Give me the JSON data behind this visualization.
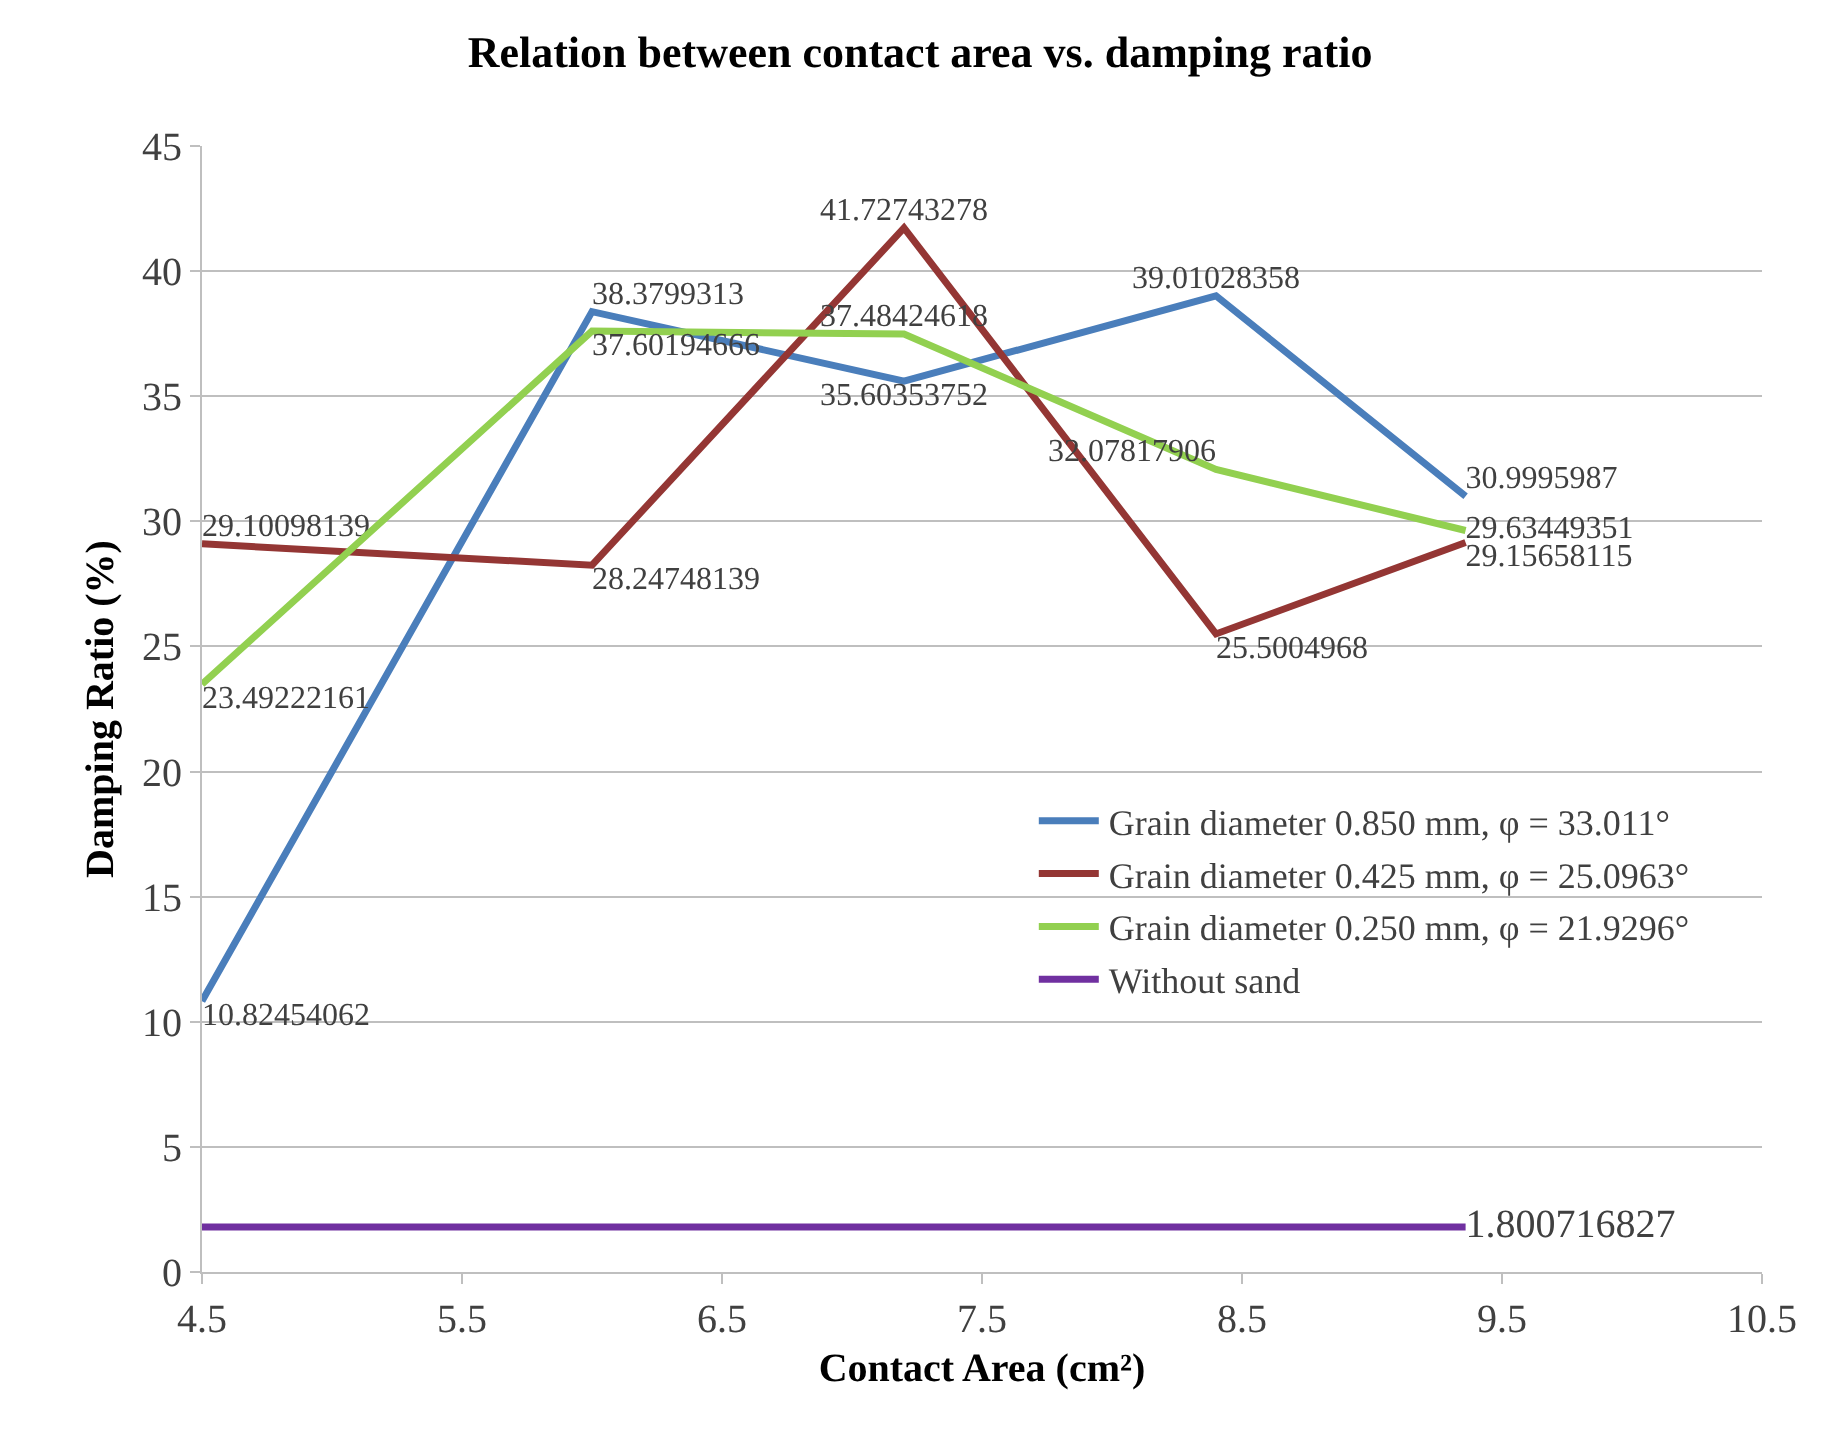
{
  "chart_data": {
    "type": "line",
    "title": "Relation between contact area vs. damping ratio",
    "xlabel": "Contact Area (cm²)",
    "ylabel": "Damping Ratio (%)",
    "x": [
      4.5,
      6.0,
      7.2,
      8.4,
      9.36
    ],
    "xlim": [
      4.5,
      10.5
    ],
    "xticks": [
      4.5,
      5.5,
      6.5,
      7.5,
      8.5,
      9.5,
      10.5
    ],
    "ylim": [
      0,
      45
    ],
    "yticks": [
      0,
      5,
      10,
      15,
      20,
      25,
      30,
      35,
      40,
      45
    ],
    "grid": "y",
    "legend": "right",
    "marker": "none",
    "line_style": "solid",
    "series": [
      {
        "name": "Grain diameter 0.850 mm, φ = 33.011°",
        "color": "#4a7ebb",
        "values": [
          10.82454062,
          38.3799313,
          35.60353752,
          39.01028358,
          30.9995987
        ],
        "value_labels": [
          "10.82454062",
          "38.3799313",
          "35.60353752",
          "39.01028358",
          "30.9995987"
        ]
      },
      {
        "name": "Grain diameter 0.425 mm, φ = 25.0963°",
        "color": "#943634",
        "values": [
          29.10098139,
          28.24748139,
          41.72743278,
          25.5004968,
          29.15658115
        ],
        "value_labels": [
          "29.10098139",
          "28.24748139",
          "41.72743278",
          "25.5004968",
          "29.15658115"
        ]
      },
      {
        "name": "Grain diameter 0.250 mm, φ = 21.9296°",
        "color": "#92d050",
        "values": [
          23.49222161,
          37.60194666,
          37.48424618,
          32.07817906,
          29.63449351
        ],
        "value_labels": [
          "23.49222161",
          "37.60194666",
          "37.48424618",
          "32.07817906",
          "29.63449351"
        ]
      },
      {
        "name": "Without sand",
        "color": "#7030a0",
        "values": [
          1.800716827,
          1.800716827,
          1.800716827,
          1.800716827,
          1.800716827
        ],
        "value_labels": [
          null,
          null,
          null,
          null,
          "1.800716827"
        ]
      }
    ]
  }
}
